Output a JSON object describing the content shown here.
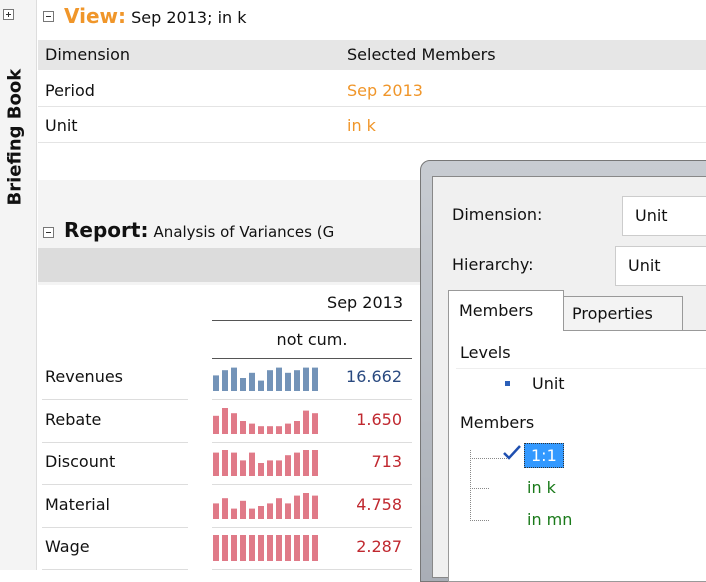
{
  "sidebar": {
    "title": "Briefing Book"
  },
  "view": {
    "label": "View:",
    "text": "Sep 2013; in k"
  },
  "view_table": {
    "headers": [
      "Dimension",
      "Selected Members"
    ],
    "rows": [
      [
        "Period",
        "Sep 2013"
      ],
      [
        "Unit",
        "in k"
      ]
    ]
  },
  "report": {
    "label": "Report:",
    "text": "Analysis of Variances (G",
    "column": "Sep 2013",
    "subcolumn": "not cum.",
    "rows": [
      {
        "label": "Revenues",
        "value": "16.662",
        "sparkline": [
          6,
          8,
          9,
          5,
          7,
          4,
          8,
          9,
          7,
          8,
          9,
          9
        ]
      },
      {
        "label": "Rebate",
        "value": "1.650",
        "sparkline": [
          7,
          10,
          8,
          5,
          4,
          3,
          3,
          3,
          4,
          5,
          9,
          8
        ]
      },
      {
        "label": "Discount",
        "value": "713",
        "sparkline": [
          9,
          10,
          9,
          6,
          9,
          5,
          6,
          6,
          8,
          9,
          10,
          10
        ]
      },
      {
        "label": "Material",
        "value": "4.758",
        "sparkline": [
          6,
          8,
          4,
          7,
          4,
          5,
          6,
          8,
          6,
          9,
          10,
          9
        ]
      },
      {
        "label": "Wage",
        "value": "2.287",
        "sparkline": [
          10,
          10,
          10,
          10,
          10,
          10,
          10,
          10,
          10,
          10,
          10,
          10
        ]
      }
    ]
  },
  "dialog": {
    "dimension_label": "Dimension:",
    "dimension_value": "Unit",
    "hierarchy_label": "Hierarchy:",
    "hierarchy_value": "Unit",
    "tabs": [
      "Members",
      "Properties"
    ],
    "levels_header": "Levels",
    "levels": [
      "Unit"
    ],
    "members_header": "Members",
    "members": [
      "1:1",
      "in k",
      "in mn"
    ]
  }
}
